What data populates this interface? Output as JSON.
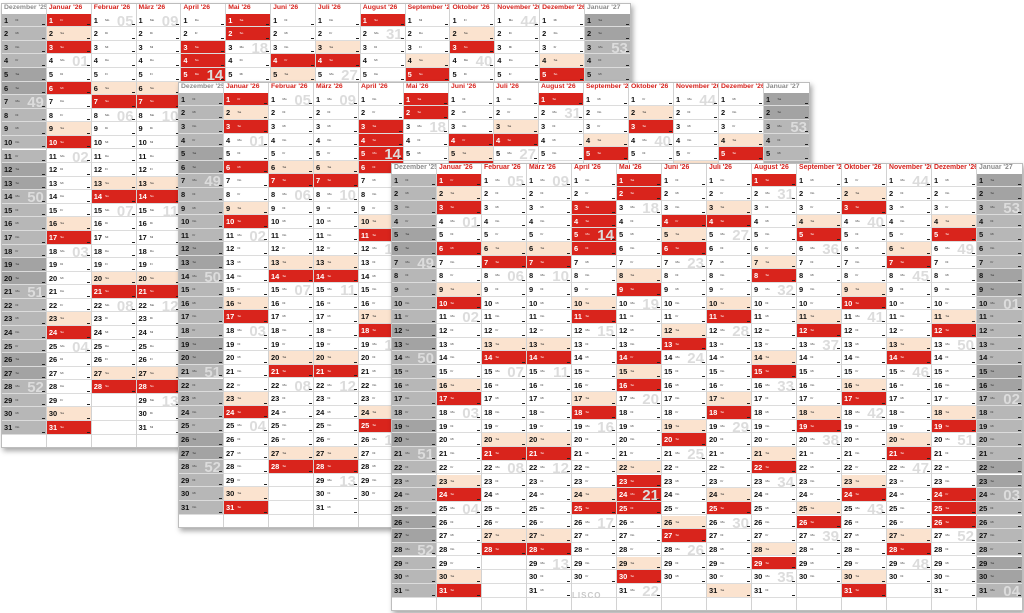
{
  "headings": {
    "months": [
      "Dezember '25",
      "Januar '26",
      "Februar '26",
      "März '26",
      "April '26",
      "Mai '26",
      "Juni '26",
      "Juli '26",
      "August '26",
      "September '26",
      "Oktober '26",
      "November '26",
      "Dezember '26",
      "Januar '27"
    ]
  },
  "logo": "LISCO",
  "colors": {
    "holiday": "#d9241c",
    "weekend": "#fbe3cf",
    "outside_year": "#b7b7b7",
    "header_text": "#d6231d"
  },
  "sheets": [
    {
      "name": "back",
      "months": [
        {
          "label": "Dezember '25",
          "days": 31,
          "first_weekday": 1,
          "dim": true
        },
        {
          "label": "Januar '26",
          "days": 31,
          "first_weekday": 4
        },
        {
          "label": "Februar '26",
          "days": 28,
          "first_weekday": 0
        },
        {
          "label": "März '26",
          "days": 31,
          "first_weekday": 0
        },
        {
          "label": "April '26",
          "days": 30,
          "first_weekday": 3
        },
        {
          "label": "Mai '26",
          "days": 31,
          "first_weekday": 5
        },
        {
          "label": "Juni '26",
          "days": 30,
          "first_weekday": 1
        },
        {
          "label": "Juli '26",
          "days": 31,
          "first_weekday": 3
        },
        {
          "label": "August '26",
          "days": 31,
          "first_weekday": 6
        },
        {
          "label": "September '26",
          "days": 30,
          "first_weekday": 2
        },
        {
          "label": "Oktober '26",
          "days": 31,
          "first_weekday": 4
        },
        {
          "label": "November '26",
          "days": 30,
          "first_weekday": 0
        },
        {
          "label": "Dezember '26",
          "days": 31,
          "first_weekday": 2
        },
        {
          "label": "Januar '27",
          "days": 31,
          "first_weekday": 5,
          "dim": true
        }
      ]
    },
    {
      "name": "middle",
      "months": [
        {
          "label": "Dezember '25",
          "days": 31,
          "first_weekday": 1,
          "dim": true
        },
        {
          "label": "Januar '26",
          "days": 31,
          "first_weekday": 4
        },
        {
          "label": "Februar '26",
          "days": 28,
          "first_weekday": 0
        },
        {
          "label": "März '26",
          "days": 31,
          "first_weekday": 0
        },
        {
          "label": "April '26",
          "days": 30,
          "first_weekday": 3
        },
        {
          "label": "Mai '26",
          "days": 31,
          "first_weekday": 5
        },
        {
          "label": "Juni '26",
          "days": 30,
          "first_weekday": 1
        },
        {
          "label": "Juli '26",
          "days": 31,
          "first_weekday": 3
        },
        {
          "label": "August '26",
          "days": 31,
          "first_weekday": 6
        },
        {
          "label": "September '26",
          "days": 30,
          "first_weekday": 2
        },
        {
          "label": "Oktober '26",
          "days": 31,
          "first_weekday": 4
        },
        {
          "label": "November '26",
          "days": 30,
          "first_weekday": 0
        },
        {
          "label": "Dezember '26",
          "days": 31,
          "first_weekday": 2
        },
        {
          "label": "Januar '27",
          "days": 31,
          "first_weekday": 5,
          "dim": true
        }
      ]
    },
    {
      "name": "front",
      "months": [
        {
          "label": "Dezember '25",
          "days": 31,
          "first_weekday": 1,
          "dim": true
        },
        {
          "label": "Januar '26",
          "days": 31,
          "first_weekday": 4
        },
        {
          "label": "Februar '26",
          "days": 28,
          "first_weekday": 0
        },
        {
          "label": "März '26",
          "days": 31,
          "first_weekday": 0
        },
        {
          "label": "April '26",
          "days": 30,
          "first_weekday": 3
        },
        {
          "label": "Mai '26",
          "days": 31,
          "first_weekday": 5
        },
        {
          "label": "Juni '26",
          "days": 30,
          "first_weekday": 1
        },
        {
          "label": "Juli '26",
          "days": 31,
          "first_weekday": 3
        },
        {
          "label": "August '26",
          "days": 31,
          "first_weekday": 6
        },
        {
          "label": "September '26",
          "days": 30,
          "first_weekday": 2
        },
        {
          "label": "Oktober '26",
          "days": 31,
          "first_weekday": 4
        },
        {
          "label": "November '26",
          "days": 30,
          "first_weekday": 0
        },
        {
          "label": "Dezember '26",
          "days": 31,
          "first_weekday": 2
        },
        {
          "label": "Januar '27",
          "days": 31,
          "first_weekday": 5,
          "dim": true
        }
      ]
    }
  ],
  "holidays": {
    "Januar '26": [
      1,
      6
    ],
    "April '26": [
      3,
      5,
      6
    ],
    "Mai '26": [
      1,
      14,
      24,
      25
    ],
    "Juni '26": [
      4
    ],
    "Oktober '26": [
      3
    ],
    "Dezember '26": [
      24,
      25,
      26
    ]
  },
  "weekday_abbr": [
    "Mo",
    "Di",
    "Mi",
    "Do",
    "Fr",
    "Sa",
    "So"
  ]
}
